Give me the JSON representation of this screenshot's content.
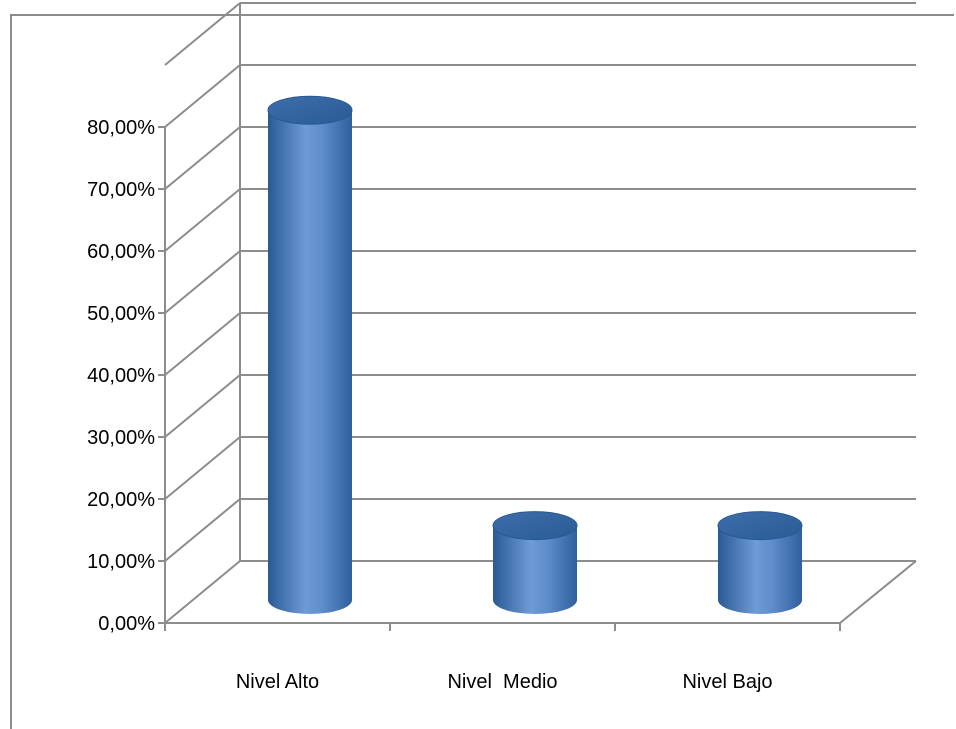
{
  "chart_data": {
    "type": "bar",
    "style": "3d-cylinder",
    "categories": [
      "Nivel Alto",
      "Nivel  Medio",
      "Nivel Bajo"
    ],
    "values": [
      0.79,
      0.12,
      0.12
    ],
    "ylim": [
      0,
      0.9
    ],
    "yticks": [
      "0,00%",
      "10,00%",
      "20,00%",
      "30,00%",
      "40,00%",
      "50,00%",
      "60,00%",
      "70,00%",
      "80,00%"
    ],
    "grid": true,
    "bar_color": "#4f81bd",
    "bar_dark_color": "#2a5a94",
    "bar_light_color": "#7ea6dc"
  }
}
